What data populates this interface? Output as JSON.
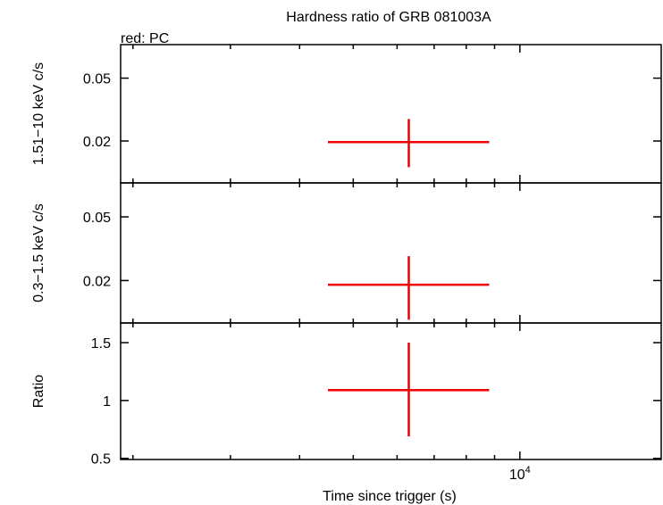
{
  "chart_data": {
    "type": "scatter",
    "title": "Hardness ratio of GRB 081003A",
    "legend": "red: PC",
    "xlabel": "Time since trigger (s)",
    "x_scale": "log",
    "xlim": [
      1900,
      18000
    ],
    "x_ticks": [
      {
        "value": 10000,
        "base": "10",
        "exp": "4"
      }
    ],
    "colors": {
      "series": "#ee0000",
      "frame": "#000000"
    },
    "panels": [
      {
        "ylabel": "1.51−10 keV c/s",
        "ylim": [
          0.0,
          0.066
        ],
        "y_ticks": [
          {
            "value": 0.02,
            "label": "0.02"
          },
          {
            "value": 0.05,
            "label": "0.05"
          }
        ],
        "points": [
          {
            "x": 6300,
            "xlo": 4500,
            "xhi": 8800,
            "y": 0.0195,
            "ylo": 0.0075,
            "yhi": 0.0305
          }
        ]
      },
      {
        "ylabel": "0.3−1.5 keV c/s",
        "ylim": [
          0.0,
          0.066
        ],
        "y_ticks": [
          {
            "value": 0.02,
            "label": "0.02"
          },
          {
            "value": 0.05,
            "label": "0.05"
          }
        ],
        "points": [
          {
            "x": 6300,
            "xlo": 4500,
            "xhi": 8800,
            "y": 0.018,
            "ylo": 0.0015,
            "yhi": 0.0315
          }
        ]
      },
      {
        "ylabel": "Ratio",
        "ylim": [
          0.49,
          1.67
        ],
        "y_ticks": [
          {
            "value": 0.5,
            "label": "0.5"
          },
          {
            "value": 1,
            "label": "1"
          },
          {
            "value": 1.5,
            "label": "1.5"
          }
        ],
        "points": [
          {
            "x": 6300,
            "xlo": 4500,
            "xhi": 8800,
            "y": 1.09,
            "ylo": 0.69,
            "yhi": 1.5
          }
        ]
      }
    ]
  }
}
